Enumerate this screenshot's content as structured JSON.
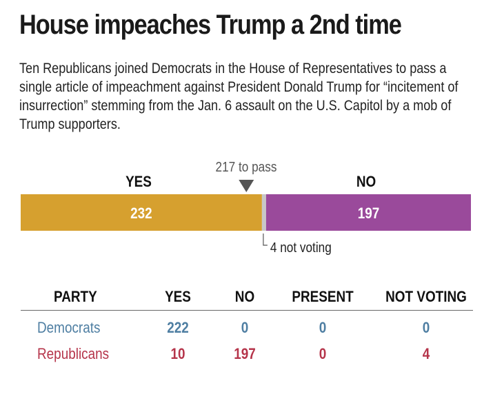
{
  "headline": "House impeaches Trump a 2nd time",
  "dek": "Ten Republicans joined Democrats in the House of Representatives to pass a single article of impeachment against President Donald Trump for “incitement of insurrection” stemming from the Jan. 6 assault on the U.S. Capitol by a mob of Trump supporters.",
  "chart_data": {
    "type": "bar",
    "orientation": "horizontal-stacked",
    "total": 433,
    "segments": [
      {
        "name": "YES",
        "value": 232,
        "color": "#d6a02f"
      },
      {
        "name": "not voting",
        "value": 4,
        "color": "#c8c8c8"
      },
      {
        "name": "NO",
        "value": 197,
        "color": "#9a4a9b"
      }
    ],
    "threshold": {
      "value": 217,
      "label": "217 to pass"
    },
    "labels": {
      "yes": "YES",
      "no": "NO",
      "yes_value": "232",
      "no_value": "197",
      "not_voting": "4 not voting"
    }
  },
  "table": {
    "headers": [
      "PARTY",
      "YES",
      "NO",
      "PRESENT",
      "NOT VOTING"
    ],
    "rows": [
      {
        "party": "Democrats",
        "yes": "222",
        "no": "0",
        "present": "0",
        "not_voting": "0"
      },
      {
        "party": "Republicans",
        "yes": "10",
        "no": "197",
        "present": "0",
        "not_voting": "4"
      }
    ]
  },
  "colors": {
    "yes": "#d6a02f",
    "no": "#9a4a9b",
    "not_voting": "#c8c8c8",
    "democrats": "#4e7ea2",
    "republicans": "#b5344a"
  }
}
